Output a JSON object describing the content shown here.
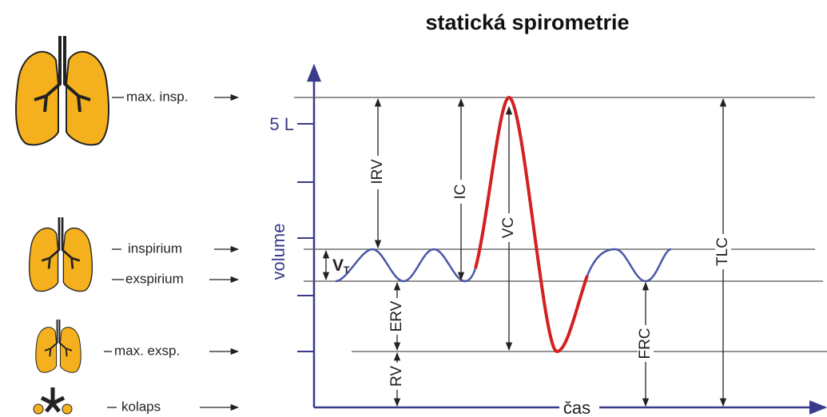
{
  "title": "statická spirometrie",
  "axes": {
    "y_label": "volume",
    "y_tick_label": "5 L",
    "x_label": "čas"
  },
  "states": [
    {
      "label": "max. insp."
    },
    {
      "label": "inspirium"
    },
    {
      "label": "exspirium"
    },
    {
      "label": "max. exsp."
    },
    {
      "label": "kolaps"
    }
  ],
  "volumes": {
    "irv": "IRV",
    "ic": "IC",
    "vc": "VC",
    "tlc": "TLC",
    "erv": "ERV",
    "rv": "RV",
    "frc": "FRC",
    "vt": {
      "base": "V",
      "sub": "T"
    }
  }
}
